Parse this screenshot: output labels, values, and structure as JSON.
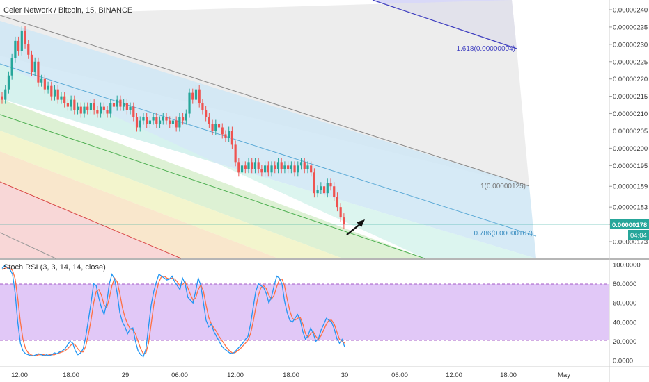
{
  "header": {
    "symbol_title": "Celer Network / Bitcoin, 15, BINANCE",
    "indicator_title": "Stoch RSI (3, 3, 14, 14, close)"
  },
  "colors": {
    "candle_up": "#26a69a",
    "candle_down": "#ef5350",
    "stoch_k": "#2196f3",
    "stoch_d": "#ff7043",
    "stoch_band": "#e1c8f7",
    "current_price_bg": "#26a69a",
    "level_1_line": "#888888",
    "level_0786_line": "#5aa9d6",
    "level_1618_line": "#3f3fc0",
    "green_line": "#4caf50",
    "red_line": "#d84343",
    "arrow": "#111111"
  },
  "chart_data": [
    {
      "type": "candlestick",
      "title": "Celer Network / Bitcoin, 15, BINANCE",
      "xlabel": "",
      "ylabel": "",
      "ylim": [
        1.7e-06,
        2.42e-06
      ],
      "x_ticks": [
        "12:00",
        "18:00",
        "29",
        "06:00",
        "12:00",
        "18:00",
        "30",
        "06:00",
        "12:00",
        "18:00",
        "May"
      ],
      "y_ticks": [
        "0.00000240",
        "0.00000235",
        "0.00000230",
        "0.00000225",
        "0.00000220",
        "0.00000215",
        "0.00000210",
        "0.00000205",
        "0.00000200",
        "0.00000195",
        "0.00000189",
        "0.00000183",
        "0.00000178",
        "0.00000173"
      ],
      "current_price": {
        "label": "0.00000178",
        "countdown": "04:04"
      },
      "fib_channel_labels": [
        {
          "text": "1.618(0.00000004)"
        },
        {
          "text": "1(0.00000125)"
        },
        {
          "text": "0.786(0.00000167)"
        }
      ],
      "series": [
        {
          "name": "",
          "close_values": [
            2.14e-06,
            2.17e-06,
            2.21e-06,
            2.26e-06,
            2.31e-06,
            2.28e-06,
            2.34e-06,
            2.3e-06,
            2.27e-06,
            2.22e-06,
            2.25e-06,
            2.19e-06,
            2.2e-06,
            2.17e-06,
            2.18e-06,
            2.15e-06,
            2.17e-06,
            2.14e-06,
            2.15e-06,
            2.13e-06,
            2.12e-06,
            2.14e-06,
            2.11e-06,
            2.12e-06,
            2.1e-06,
            2.12e-06,
            2.11e-06,
            2.13e-06,
            2.11e-06,
            2.1e-06,
            2.12e-06,
            2.11e-06,
            2.1e-06,
            2.13e-06,
            2.12e-06,
            2.14e-06,
            2.12e-06,
            2.13e-06,
            2.11e-06,
            2.12e-06,
            2.09e-06,
            2.06e-06,
            2.08e-06,
            2.09e-06,
            2.07e-06,
            2.08e-06,
            2.09e-06,
            2.07e-06,
            2.08e-06,
            2.09e-06,
            2.08e-06,
            2.07e-06,
            2.08e-06,
            2.06e-06,
            2.09e-06,
            2.08e-06,
            2.1e-06,
            2.16e-06,
            2.14e-06,
            2.17e-06,
            2.13e-06,
            2.11e-06,
            2.09e-06,
            2.07e-06,
            2.05e-06,
            2.07e-06,
            2.06e-06,
            2.04e-06,
            2.03e-06,
            2.05e-06,
            2.01e-06,
            1.96e-06,
            1.93e-06,
            1.95e-06,
            1.94e-06,
            1.96e-06,
            1.94e-06,
            1.96e-06,
            1.94e-06,
            1.93e-06,
            1.95e-06,
            1.93e-06,
            1.95e-06,
            1.94e-06,
            1.96e-06,
            1.94e-06,
            1.95e-06,
            1.94e-06,
            1.95e-06,
            1.93e-06,
            1.95e-06,
            1.96e-06,
            1.94e-06,
            1.95e-06,
            1.93e-06,
            1.87e-06,
            1.88e-06,
            1.89e-06,
            1.87e-06,
            1.9e-06,
            1.89e-06,
            1.86e-06,
            1.83e-06,
            1.8e-06,
            1.78e-06
          ]
        }
      ]
    },
    {
      "type": "line",
      "title": "Stoch RSI (3, 3, 14, 14, close)",
      "xlabel": "",
      "ylabel": "",
      "ylim": [
        -5,
        105
      ],
      "bands": [
        20,
        80
      ],
      "y_ticks": [
        "100.0000",
        "80.0000",
        "60.0000",
        "40.0000",
        "20.0000",
        "0.0000"
      ],
      "series": [
        {
          "name": "",
          "values": [
            96,
            99,
            97,
            95,
            90,
            70,
            40,
            18,
            10,
            7,
            6,
            5,
            5,
            6,
            7,
            6,
            5,
            6,
            5,
            6,
            8,
            7,
            9,
            10,
            12,
            16,
            20,
            18,
            10,
            6,
            8,
            12,
            25,
            42,
            60,
            80,
            78,
            65,
            55,
            48,
            60,
            80,
            90,
            85,
            70,
            50,
            40,
            35,
            28,
            33,
            34,
            20,
            10,
            6,
            4,
            12,
            35,
            58,
            72,
            82,
            90,
            88,
            86,
            84,
            85,
            88,
            82,
            78,
            74,
            86,
            80,
            66,
            63,
            60,
            72,
            86,
            78,
            60,
            42,
            35,
            38,
            30,
            25,
            20,
            15,
            12,
            10,
            8,
            7,
            9,
            12,
            15,
            18,
            22,
            25,
            38,
            55,
            72,
            80,
            78,
            76,
            70,
            60,
            66,
            78,
            88,
            86,
            80,
            62,
            50,
            42,
            40,
            44,
            48,
            42,
            30,
            22,
            26,
            34,
            28,
            20,
            23,
            32,
            38,
            44,
            42,
            40,
            33,
            23,
            18,
            22,
            14
          ]
        },
        {
          "name": "",
          "values": [
            95,
            96,
            97,
            96,
            94,
            85,
            65,
            40,
            22,
            12,
            8,
            6,
            5,
            5,
            6,
            6,
            6,
            5,
            6,
            6,
            6,
            7,
            8,
            9,
            10,
            12,
            15,
            18,
            16,
            12,
            9,
            9,
            15,
            27,
            42,
            60,
            72,
            74,
            68,
            58,
            55,
            65,
            78,
            86,
            82,
            70,
            55,
            45,
            38,
            33,
            32,
            28,
            20,
            12,
            7,
            8,
            18,
            38,
            58,
            72,
            82,
            88,
            88,
            86,
            85,
            86,
            85,
            82,
            78,
            79,
            82,
            76,
            69,
            63,
            65,
            74,
            79,
            72,
            58,
            45,
            38,
            34,
            30,
            25,
            21,
            17,
            13,
            10,
            8,
            8,
            10,
            12,
            15,
            18,
            21,
            28,
            40,
            55,
            68,
            76,
            78,
            75,
            68,
            64,
            68,
            77,
            84,
            85,
            78,
            64,
            52,
            44,
            42,
            44,
            45,
            38,
            28,
            24,
            28,
            30,
            25,
            22,
            26,
            32,
            38,
            42,
            42,
            38,
            30,
            22,
            20,
            18
          ]
        }
      ]
    }
  ]
}
